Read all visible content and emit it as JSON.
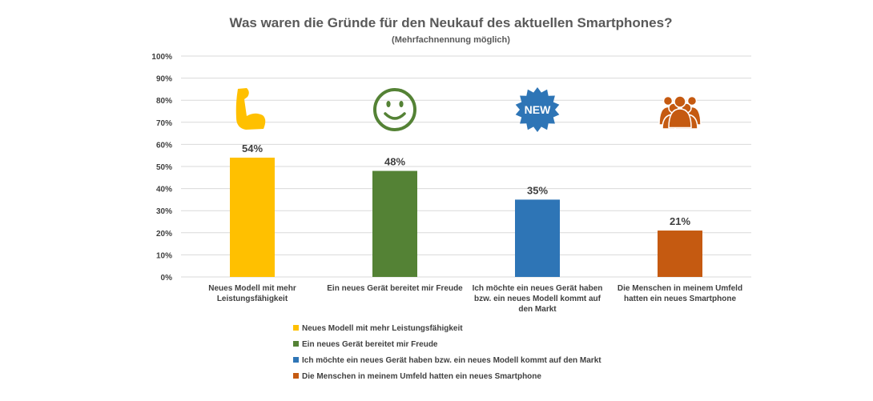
{
  "chart_data": {
    "type": "bar",
    "title": "Was waren die Gründe für den Neukauf des aktuellen Smartphones?",
    "subtitle": "(Mehrfachnennung möglich)",
    "categories": [
      [
        "Neues Modell mit mehr",
        "Leistungsfähigkeit"
      ],
      [
        "Ein neues Gerät bereitet mir Freude"
      ],
      [
        "Ich möchte ein neues Gerät haben",
        "bzw. ein neues Modell kommt auf",
        "den Markt"
      ],
      [
        "Die Menschen in meinem Umfeld",
        "hatten ein neues Smartphone"
      ]
    ],
    "values": [
      54,
      48,
      35,
      21
    ],
    "data_labels": [
      "54%",
      "48%",
      "35%",
      "21%"
    ],
    "colors": [
      "#FFC000",
      "#548235",
      "#2E75B6",
      "#C55A11"
    ],
    "icons": [
      "flexed-biceps-icon",
      "smiley-face-icon",
      "new-badge-icon",
      "group-of-people-icon"
    ],
    "icon_badge_text": "NEW",
    "ylim": [
      0,
      100
    ],
    "yticks": [
      "0%",
      "10%",
      "20%",
      "30%",
      "40%",
      "50%",
      "60%",
      "70%",
      "80%",
      "90%",
      "100%"
    ],
    "grid": true,
    "legend_position": "bottom",
    "legend": [
      "Neues Modell mit mehr Leistungsfähigkeit",
      "Ein neues Gerät bereitet mir Freude",
      "Ich möchte ein neues Gerät haben bzw. ein neues Modell kommt auf den Markt",
      "Die Menschen in meinem Umfeld hatten ein neues Smartphone"
    ]
  }
}
